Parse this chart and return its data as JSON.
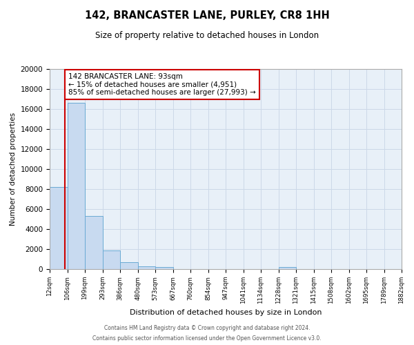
{
  "title": "142, BRANCASTER LANE, PURLEY, CR8 1HH",
  "subtitle": "Size of property relative to detached houses in London",
  "xlabel": "Distribution of detached houses by size in London",
  "ylabel": "Number of detached properties",
  "bar_edges": [
    12,
    106,
    199,
    293,
    386,
    480,
    573,
    667,
    760,
    854,
    947,
    1041,
    1134,
    1228,
    1321,
    1415,
    1508,
    1602,
    1695,
    1789,
    1882
  ],
  "bar_heights": [
    8200,
    16600,
    5300,
    1850,
    700,
    280,
    200,
    0,
    0,
    0,
    0,
    0,
    0,
    200,
    0,
    0,
    0,
    0,
    0,
    0
  ],
  "bar_color": "#c8daf0",
  "bar_edge_color": "#6aaad4",
  "vline_x": 93,
  "vline_color": "#cc0000",
  "annotation_title": "142 BRANCASTER LANE: 93sqm",
  "annotation_line1": "← 15% of detached houses are smaller (4,951)",
  "annotation_line2": "85% of semi-detached houses are larger (27,993) →",
  "annotation_box_edge_color": "#cc0000",
  "annotation_box_face_color": "#ffffff",
  "ylim": [
    0,
    20000
  ],
  "yticks": [
    0,
    2000,
    4000,
    6000,
    8000,
    10000,
    12000,
    14000,
    16000,
    18000,
    20000
  ],
  "tick_labels": [
    "12sqm",
    "106sqm",
    "199sqm",
    "293sqm",
    "386sqm",
    "480sqm",
    "573sqm",
    "667sqm",
    "760sqm",
    "854sqm",
    "947sqm",
    "1041sqm",
    "1134sqm",
    "1228sqm",
    "1321sqm",
    "1415sqm",
    "1508sqm",
    "1602sqm",
    "1695sqm",
    "1789sqm",
    "1882sqm"
  ],
  "grid_color": "#ccd8e8",
  "background_color": "#e8f0f8",
  "footer_line1": "Contains HM Land Registry data © Crown copyright and database right 2024.",
  "footer_line2": "Contains public sector information licensed under the Open Government Licence v3.0."
}
